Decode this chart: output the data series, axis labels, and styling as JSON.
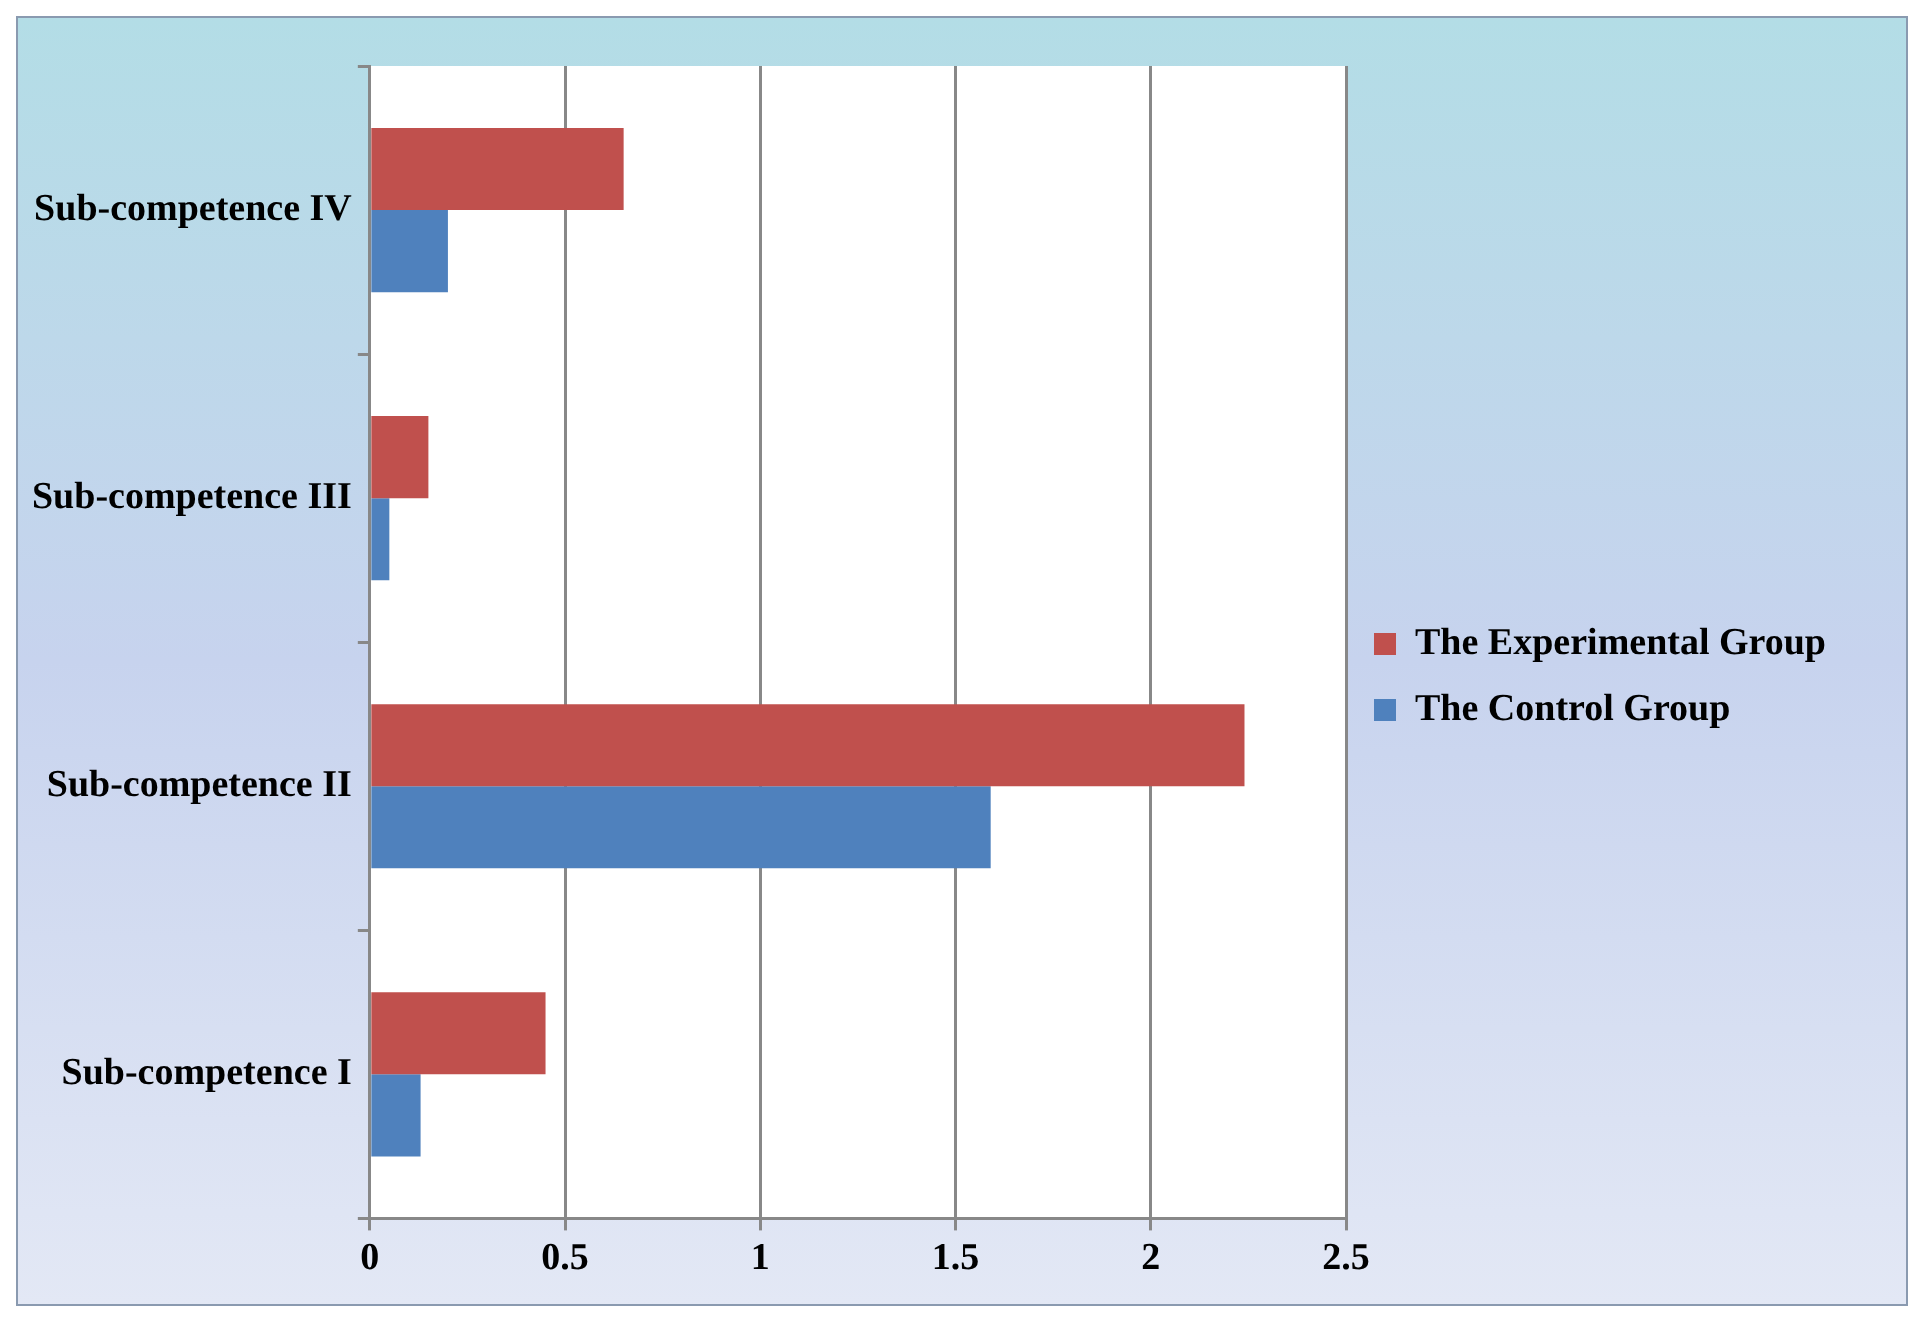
{
  "chart_data": {
    "type": "bar",
    "orientation": "horizontal",
    "categories": [
      "Sub-competence IV",
      "Sub-competence III",
      "Sub-competence II",
      "Sub-competence I"
    ],
    "series": [
      {
        "name": "The Experimental Group",
        "color": "#c0504d",
        "values": [
          0.65,
          0.15,
          2.24,
          0.45
        ]
      },
      {
        "name": "The Control Group",
        "color": "#4f81bd",
        "values": [
          0.2,
          0.05,
          1.59,
          0.13
        ]
      }
    ],
    "xlim": [
      0,
      2.5
    ],
    "xticks": [
      0,
      0.5,
      1,
      1.5,
      2,
      2.5
    ],
    "grid": "x",
    "legend": "right"
  }
}
